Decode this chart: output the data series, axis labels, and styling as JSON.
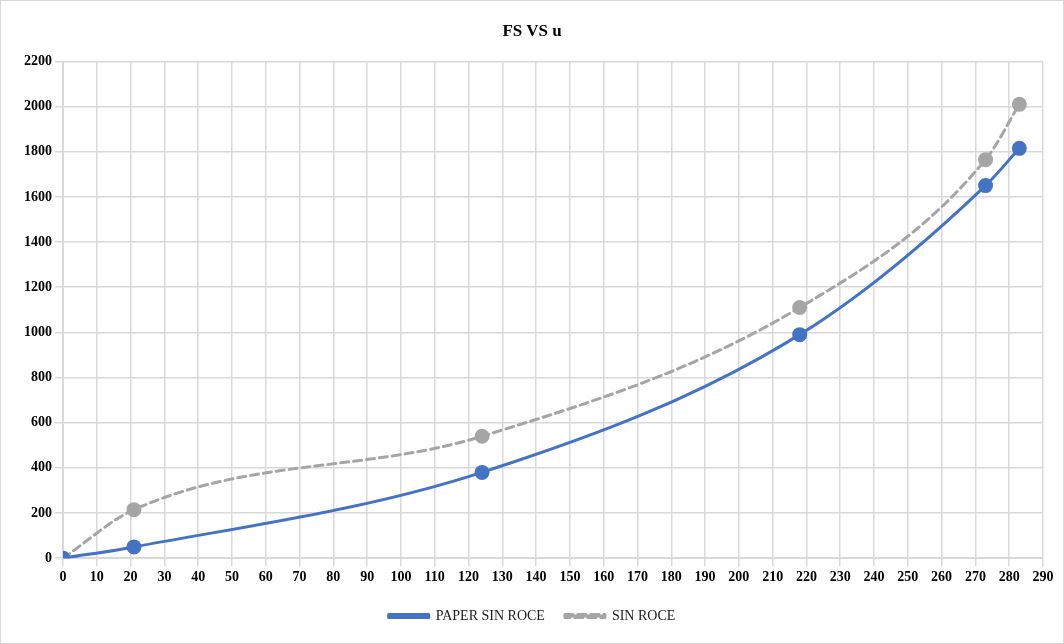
{
  "chart_data": {
    "type": "line",
    "title": "FS VS u",
    "xlim": [
      0,
      290
    ],
    "xticks": [
      0,
      10,
      20,
      30,
      40,
      50,
      60,
      70,
      80,
      90,
      100,
      110,
      120,
      130,
      140,
      150,
      160,
      170,
      180,
      190,
      200,
      210,
      220,
      230,
      240,
      250,
      260,
      270,
      280,
      290
    ],
    "ylim": [
      0,
      2200
    ],
    "yticks": [
      0,
      200,
      400,
      600,
      800,
      1000,
      1200,
      1400,
      1600,
      1800,
      2000,
      2200
    ],
    "grid": true,
    "legend": "bottom",
    "marker": "circle",
    "series": [
      {
        "name": "PAPER SIN ROCE",
        "color": "#4472c4",
        "line_style": "solid",
        "x": [
          0,
          21,
          124,
          218,
          273,
          283
        ],
        "values": [
          0,
          50,
          380,
          990,
          1650,
          1815
        ]
      },
      {
        "name": "SIN ROCE",
        "color": "#a5a5a5",
        "line_style": "dashed",
        "x": [
          0,
          21,
          124,
          218,
          273,
          283
        ],
        "values": [
          0,
          215,
          540,
          1110,
          1765,
          2010
        ]
      }
    ]
  }
}
